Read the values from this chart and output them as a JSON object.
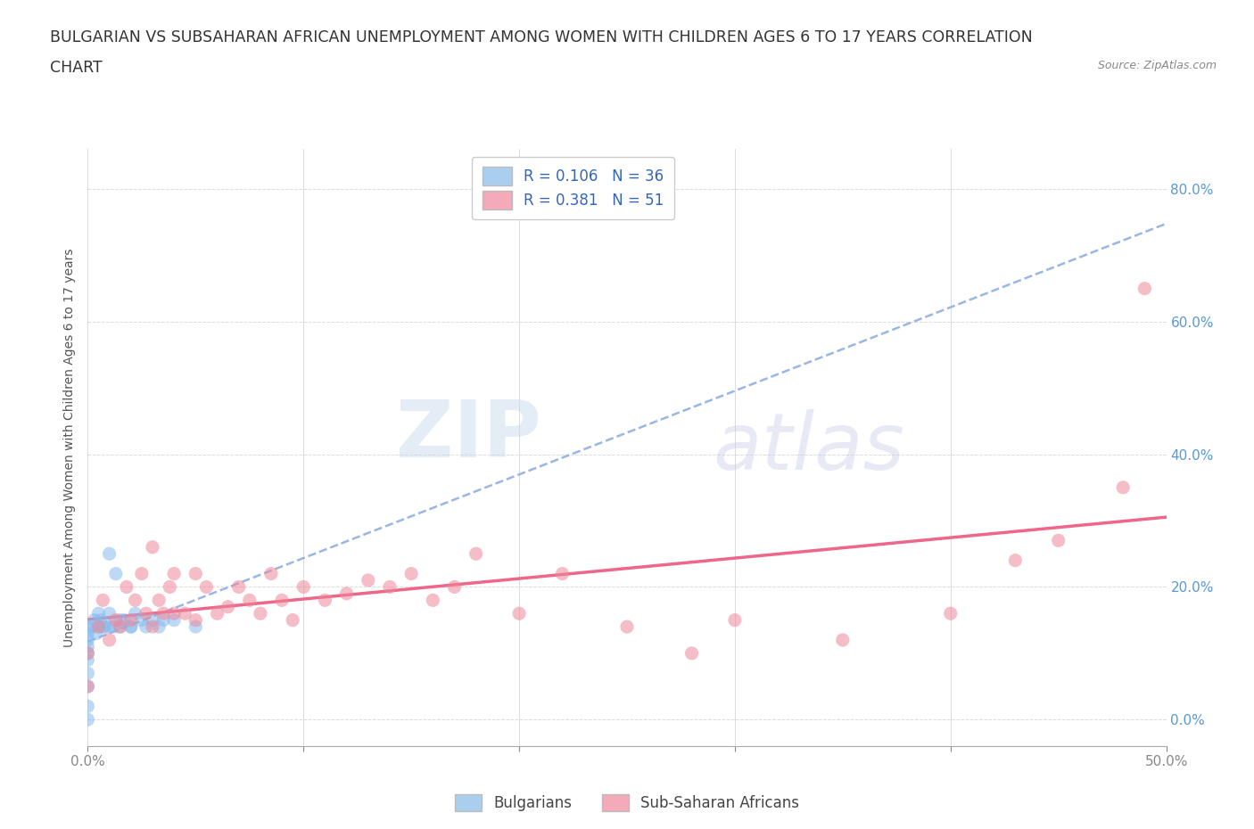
{
  "title_line1": "BULGARIAN VS SUBSAHARAN AFRICAN UNEMPLOYMENT AMONG WOMEN WITH CHILDREN AGES 6 TO 17 YEARS CORRELATION",
  "title_line2": "CHART",
  "source": "Source: ZipAtlas.com",
  "ylabel": "Unemployment Among Women with Children Ages 6 to 17 years",
  "xlim": [
    0.0,
    0.5
  ],
  "ylim": [
    -0.04,
    0.86
  ],
  "xticks": [
    0.0,
    0.1,
    0.2,
    0.3,
    0.4,
    0.5
  ],
  "xtick_labels": [
    "0.0%",
    "",
    "",
    "",
    "",
    "50.0%"
  ],
  "ytick_positions": [
    0.0,
    0.2,
    0.4,
    0.6,
    0.8
  ],
  "ytick_labels_right": [
    "0.0%",
    "20.0%",
    "40.0%",
    "60.0%",
    "80.0%"
  ],
  "bg_color": "#ffffff",
  "grid_color": "#cccccc",
  "watermark_zip": "ZIP",
  "watermark_atlas": "atlas",
  "legend_R1": "0.106",
  "legend_N1": "36",
  "legend_R2": "0.381",
  "legend_N2": "51",
  "legend_color1": "#aacfee",
  "legend_color2": "#f5aaba",
  "scatter_color1": "#88bbee",
  "scatter_color2": "#ee8899",
  "trend_color1": "#88aadd",
  "trend_color2": "#ee6688",
  "bulgarian_x": [
    0.0,
    0.0,
    0.0,
    0.0,
    0.0,
    0.0,
    0.0,
    0.0,
    0.0,
    0.0,
    0.002,
    0.003,
    0.004,
    0.005,
    0.005,
    0.006,
    0.007,
    0.008,
    0.01,
    0.01,
    0.01,
    0.012,
    0.013,
    0.015,
    0.015,
    0.017,
    0.02,
    0.02,
    0.022,
    0.025,
    0.027,
    0.03,
    0.033,
    0.035,
    0.04,
    0.05
  ],
  "bulgarian_y": [
    0.14,
    0.13,
    0.12,
    0.11,
    0.1,
    0.09,
    0.07,
    0.05,
    0.02,
    0.0,
    0.14,
    0.15,
    0.13,
    0.14,
    0.16,
    0.15,
    0.14,
    0.14,
    0.14,
    0.16,
    0.25,
    0.14,
    0.22,
    0.15,
    0.14,
    0.15,
    0.14,
    0.14,
    0.16,
    0.15,
    0.14,
    0.15,
    0.14,
    0.15,
    0.15,
    0.14
  ],
  "subsaharan_x": [
    0.0,
    0.0,
    0.005,
    0.007,
    0.01,
    0.013,
    0.015,
    0.018,
    0.02,
    0.022,
    0.025,
    0.027,
    0.03,
    0.03,
    0.033,
    0.035,
    0.038,
    0.04,
    0.04,
    0.045,
    0.05,
    0.05,
    0.055,
    0.06,
    0.065,
    0.07,
    0.075,
    0.08,
    0.085,
    0.09,
    0.095,
    0.1,
    0.11,
    0.12,
    0.13,
    0.14,
    0.15,
    0.16,
    0.17,
    0.18,
    0.2,
    0.22,
    0.25,
    0.28,
    0.3,
    0.35,
    0.4,
    0.43,
    0.45,
    0.48,
    0.49
  ],
  "subsaharan_y": [
    0.1,
    0.05,
    0.14,
    0.18,
    0.12,
    0.15,
    0.14,
    0.2,
    0.15,
    0.18,
    0.22,
    0.16,
    0.14,
    0.26,
    0.18,
    0.16,
    0.2,
    0.16,
    0.22,
    0.16,
    0.15,
    0.22,
    0.2,
    0.16,
    0.17,
    0.2,
    0.18,
    0.16,
    0.22,
    0.18,
    0.15,
    0.2,
    0.18,
    0.19,
    0.21,
    0.2,
    0.22,
    0.18,
    0.2,
    0.25,
    0.16,
    0.22,
    0.14,
    0.1,
    0.15,
    0.12,
    0.16,
    0.24,
    0.27,
    0.35,
    0.65
  ]
}
